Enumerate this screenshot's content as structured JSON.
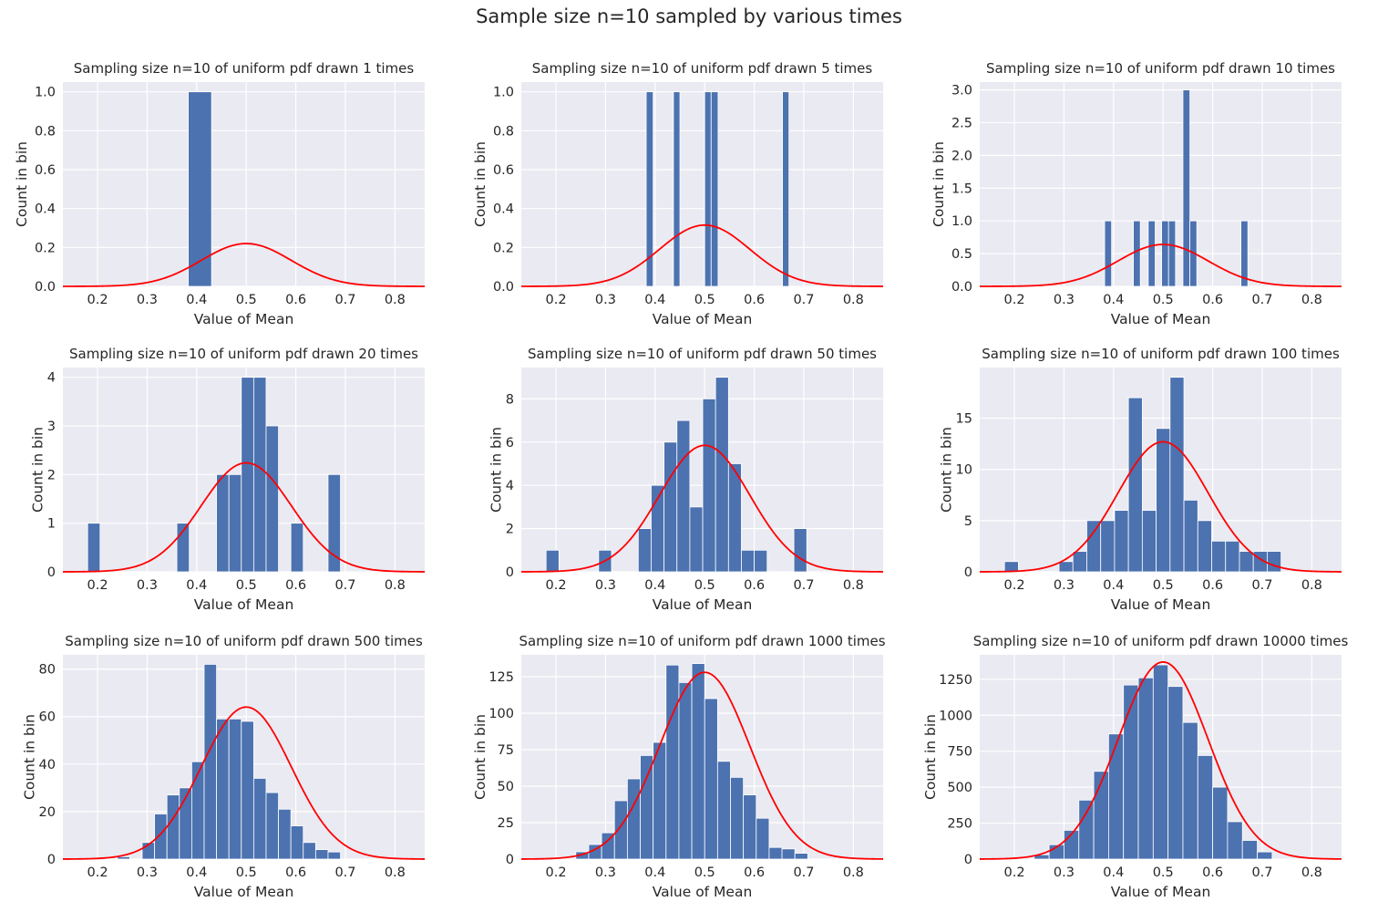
{
  "figure": {
    "suptitle": "Sample size n=10 sampled by various times",
    "colors": {
      "bar": "#4c72b0",
      "curve": "#ff0000",
      "plot_bg": "#eaeaf2",
      "grid": "#ffffff"
    }
  },
  "chart_data": [
    {
      "type": "bar",
      "title": "Sampling size n=10 of uniform pdf drawn 1 times",
      "xlabel": "Value of Mean",
      "ylabel": "Count in bin",
      "xlim": [
        0.13,
        0.86
      ],
      "ylim": [
        0,
        1.05
      ],
      "xticks": [
        0.2,
        0.3,
        0.4,
        0.5,
        0.6,
        0.7,
        0.8
      ],
      "yticks": [
        0.0,
        0.2,
        0.4,
        0.6,
        0.8,
        1.0
      ],
      "ytick_labels": [
        "0.0",
        "0.2",
        "0.4",
        "0.6",
        "0.8",
        "1.0"
      ],
      "bars": [
        {
          "x0": 0.383,
          "x1": 0.43,
          "y": 1
        }
      ],
      "curve": {
        "mean": 0.5,
        "sd": 0.091,
        "peak": 0.22
      },
      "grid": true,
      "legend": "none"
    },
    {
      "type": "bar",
      "title": "Sampling size n=10 of uniform pdf drawn 5 times",
      "xlabel": "Value of Mean",
      "ylabel": "Count in bin",
      "xlim": [
        0.13,
        0.86
      ],
      "ylim": [
        0,
        1.05
      ],
      "xticks": [
        0.2,
        0.3,
        0.4,
        0.5,
        0.6,
        0.7,
        0.8
      ],
      "yticks": [
        0.0,
        0.2,
        0.4,
        0.6,
        0.8,
        1.0
      ],
      "ytick_labels": [
        "0.0",
        "0.2",
        "0.4",
        "0.6",
        "0.8",
        "1.0"
      ],
      "bars": [
        {
          "x0": 0.382,
          "x1": 0.396,
          "y": 1
        },
        {
          "x0": 0.437,
          "x1": 0.45,
          "y": 1
        },
        {
          "x0": 0.5,
          "x1": 0.513,
          "y": 1
        },
        {
          "x0": 0.513,
          "x1": 0.527,
          "y": 1
        },
        {
          "x0": 0.657,
          "x1": 0.67,
          "y": 1
        }
      ],
      "curve": {
        "mean": 0.5,
        "sd": 0.091,
        "peak": 0.315
      },
      "grid": true,
      "legend": "none"
    },
    {
      "type": "bar",
      "title": "Sampling size n=10 of uniform pdf drawn 10 times",
      "xlabel": "Value of Mean",
      "ylabel": "Count in bin",
      "xlim": [
        0.13,
        0.86
      ],
      "ylim": [
        0,
        3.12
      ],
      "xticks": [
        0.2,
        0.3,
        0.4,
        0.5,
        0.6,
        0.7,
        0.8
      ],
      "yticks": [
        0.0,
        0.5,
        1.0,
        1.5,
        2.0,
        2.5,
        3.0
      ],
      "ytick_labels": [
        "0.0",
        "0.5",
        "1.0",
        "1.5",
        "2.0",
        "2.5",
        "3.0"
      ],
      "bars": [
        {
          "x0": 0.382,
          "x1": 0.396,
          "y": 1
        },
        {
          "x0": 0.44,
          "x1": 0.454,
          "y": 1
        },
        {
          "x0": 0.47,
          "x1": 0.484,
          "y": 1
        },
        {
          "x0": 0.497,
          "x1": 0.511,
          "y": 1
        },
        {
          "x0": 0.511,
          "x1": 0.525,
          "y": 1
        },
        {
          "x0": 0.54,
          "x1": 0.554,
          "y": 3
        },
        {
          "x0": 0.554,
          "x1": 0.568,
          "y": 1
        },
        {
          "x0": 0.657,
          "x1": 0.671,
          "y": 1
        }
      ],
      "curve": {
        "mean": 0.5,
        "sd": 0.091,
        "peak": 0.64
      },
      "grid": true,
      "legend": "none"
    },
    {
      "type": "bar",
      "title": "Sampling size n=10 of uniform pdf drawn 20 times",
      "xlabel": "Value of Mean",
      "ylabel": "Count in bin",
      "xlim": [
        0.13,
        0.86
      ],
      "ylim": [
        0,
        4.2
      ],
      "xticks": [
        0.2,
        0.3,
        0.4,
        0.5,
        0.6,
        0.7,
        0.8
      ],
      "yticks": [
        0,
        1,
        2,
        3,
        4
      ],
      "ytick_labels": [
        "0",
        "1",
        "2",
        "3",
        "4"
      ],
      "bars": [
        {
          "x0": 0.18,
          "x1": 0.205,
          "y": 1
        },
        {
          "x0": 0.36,
          "x1": 0.385,
          "y": 1
        },
        {
          "x0": 0.44,
          "x1": 0.465,
          "y": 2
        },
        {
          "x0": 0.465,
          "x1": 0.49,
          "y": 2
        },
        {
          "x0": 0.49,
          "x1": 0.515,
          "y": 4
        },
        {
          "x0": 0.515,
          "x1": 0.54,
          "y": 4
        },
        {
          "x0": 0.54,
          "x1": 0.565,
          "y": 3
        },
        {
          "x0": 0.59,
          "x1": 0.615,
          "y": 1
        },
        {
          "x0": 0.665,
          "x1": 0.69,
          "y": 2
        }
      ],
      "curve": {
        "mean": 0.5,
        "sd": 0.091,
        "peak": 2.24
      },
      "grid": true,
      "legend": "none"
    },
    {
      "type": "bar",
      "title": "Sampling size n=10 of uniform pdf drawn 50 times",
      "xlabel": "Value of Mean",
      "ylabel": "Count in bin",
      "xlim": [
        0.13,
        0.86
      ],
      "ylim": [
        0,
        9.45
      ],
      "xticks": [
        0.2,
        0.3,
        0.4,
        0.5,
        0.6,
        0.7,
        0.8
      ],
      "yticks": [
        0,
        2,
        4,
        6,
        8
      ],
      "ytick_labels": [
        "0",
        "2",
        "4",
        "6",
        "8"
      ],
      "bars": [
        {
          "x0": 0.18,
          "x1": 0.206,
          "y": 1
        },
        {
          "x0": 0.286,
          "x1": 0.312,
          "y": 1
        },
        {
          "x0": 0.366,
          "x1": 0.392,
          "y": 2
        },
        {
          "x0": 0.392,
          "x1": 0.418,
          "y": 4
        },
        {
          "x0": 0.418,
          "x1": 0.444,
          "y": 6
        },
        {
          "x0": 0.444,
          "x1": 0.47,
          "y": 7
        },
        {
          "x0": 0.47,
          "x1": 0.496,
          "y": 3
        },
        {
          "x0": 0.496,
          "x1": 0.522,
          "y": 8
        },
        {
          "x0": 0.522,
          "x1": 0.548,
          "y": 9
        },
        {
          "x0": 0.548,
          "x1": 0.574,
          "y": 5
        },
        {
          "x0": 0.574,
          "x1": 0.6,
          "y": 1
        },
        {
          "x0": 0.6,
          "x1": 0.626,
          "y": 1
        },
        {
          "x0": 0.68,
          "x1": 0.706,
          "y": 2
        }
      ],
      "curve": {
        "mean": 0.5,
        "sd": 0.091,
        "peak": 5.85
      },
      "grid": true,
      "legend": "none"
    },
    {
      "type": "bar",
      "title": "Sampling size n=10 of uniform pdf drawn 100 times",
      "xlabel": "Value of Mean",
      "ylabel": "Count in bin",
      "xlim": [
        0.13,
        0.86
      ],
      "ylim": [
        0,
        19.95
      ],
      "xticks": [
        0.2,
        0.3,
        0.4,
        0.5,
        0.6,
        0.7,
        0.8
      ],
      "yticks": [
        0,
        5,
        10,
        15
      ],
      "ytick_labels": [
        "0",
        "5",
        "10",
        "15"
      ],
      "bars": [
        {
          "x0": 0.18,
          "x1": 0.208,
          "y": 1
        },
        {
          "x0": 0.29,
          "x1": 0.318,
          "y": 1
        },
        {
          "x0": 0.318,
          "x1": 0.346,
          "y": 2
        },
        {
          "x0": 0.346,
          "x1": 0.374,
          "y": 5
        },
        {
          "x0": 0.374,
          "x1": 0.402,
          "y": 5
        },
        {
          "x0": 0.402,
          "x1": 0.43,
          "y": 6
        },
        {
          "x0": 0.43,
          "x1": 0.458,
          "y": 17
        },
        {
          "x0": 0.458,
          "x1": 0.486,
          "y": 6
        },
        {
          "x0": 0.486,
          "x1": 0.514,
          "y": 14
        },
        {
          "x0": 0.514,
          "x1": 0.542,
          "y": 19
        },
        {
          "x0": 0.542,
          "x1": 0.57,
          "y": 7
        },
        {
          "x0": 0.57,
          "x1": 0.598,
          "y": 5
        },
        {
          "x0": 0.598,
          "x1": 0.626,
          "y": 3
        },
        {
          "x0": 0.626,
          "x1": 0.654,
          "y": 3
        },
        {
          "x0": 0.654,
          "x1": 0.682,
          "y": 2
        },
        {
          "x0": 0.682,
          "x1": 0.71,
          "y": 2
        },
        {
          "x0": 0.71,
          "x1": 0.738,
          "y": 2
        }
      ],
      "curve": {
        "mean": 0.5,
        "sd": 0.091,
        "peak": 12.7
      },
      "grid": true,
      "legend": "none"
    },
    {
      "type": "bar",
      "title": "Sampling size n=10 of uniform pdf drawn 500 times",
      "xlabel": "Value of Mean",
      "ylabel": "Count in bin",
      "xlim": [
        0.13,
        0.86
      ],
      "ylim": [
        0,
        86
      ],
      "xticks": [
        0.2,
        0.3,
        0.4,
        0.5,
        0.6,
        0.7,
        0.8
      ],
      "yticks": [
        0,
        20,
        40,
        60,
        80
      ],
      "ytick_labels": [
        "0",
        "20",
        "40",
        "60",
        "80"
      ],
      "bars": [
        {
          "x0": 0.24,
          "x1": 0.265,
          "y": 1
        },
        {
          "x0": 0.29,
          "x1": 0.315,
          "y": 7
        },
        {
          "x0": 0.315,
          "x1": 0.34,
          "y": 19
        },
        {
          "x0": 0.34,
          "x1": 0.365,
          "y": 27
        },
        {
          "x0": 0.365,
          "x1": 0.39,
          "y": 30
        },
        {
          "x0": 0.39,
          "x1": 0.415,
          "y": 41
        },
        {
          "x0": 0.415,
          "x1": 0.44,
          "y": 82
        },
        {
          "x0": 0.44,
          "x1": 0.465,
          "y": 59
        },
        {
          "x0": 0.465,
          "x1": 0.49,
          "y": 59
        },
        {
          "x0": 0.49,
          "x1": 0.515,
          "y": 58
        },
        {
          "x0": 0.515,
          "x1": 0.54,
          "y": 34
        },
        {
          "x0": 0.54,
          "x1": 0.565,
          "y": 28
        },
        {
          "x0": 0.565,
          "x1": 0.59,
          "y": 21
        },
        {
          "x0": 0.59,
          "x1": 0.615,
          "y": 14
        },
        {
          "x0": 0.615,
          "x1": 0.64,
          "y": 7
        },
        {
          "x0": 0.64,
          "x1": 0.665,
          "y": 4
        },
        {
          "x0": 0.665,
          "x1": 0.69,
          "y": 3
        }
      ],
      "curve": {
        "mean": 0.5,
        "sd": 0.091,
        "peak": 64
      },
      "grid": true,
      "legend": "none"
    },
    {
      "type": "bar",
      "title": "Sampling size n=10 of uniform pdf drawn 1000 times",
      "xlabel": "Value of Mean",
      "ylabel": "Count in bin",
      "xlim": [
        0.13,
        0.86
      ],
      "ylim": [
        0,
        140
      ],
      "xticks": [
        0.2,
        0.3,
        0.4,
        0.5,
        0.6,
        0.7,
        0.8
      ],
      "yticks": [
        0,
        25,
        50,
        75,
        100,
        125
      ],
      "ytick_labels": [
        "0",
        "25",
        "50",
        "75",
        "100",
        "125"
      ],
      "bars": [
        {
          "x0": 0.24,
          "x1": 0.266,
          "y": 5
        },
        {
          "x0": 0.266,
          "x1": 0.292,
          "y": 10
        },
        {
          "x0": 0.292,
          "x1": 0.318,
          "y": 18
        },
        {
          "x0": 0.318,
          "x1": 0.344,
          "y": 40
        },
        {
          "x0": 0.344,
          "x1": 0.37,
          "y": 55
        },
        {
          "x0": 0.37,
          "x1": 0.396,
          "y": 71
        },
        {
          "x0": 0.396,
          "x1": 0.422,
          "y": 80
        },
        {
          "x0": 0.422,
          "x1": 0.448,
          "y": 133
        },
        {
          "x0": 0.448,
          "x1": 0.474,
          "y": 121
        },
        {
          "x0": 0.474,
          "x1": 0.5,
          "y": 134
        },
        {
          "x0": 0.5,
          "x1": 0.526,
          "y": 110
        },
        {
          "x0": 0.526,
          "x1": 0.552,
          "y": 67
        },
        {
          "x0": 0.552,
          "x1": 0.578,
          "y": 56
        },
        {
          "x0": 0.578,
          "x1": 0.604,
          "y": 44
        },
        {
          "x0": 0.604,
          "x1": 0.63,
          "y": 28
        },
        {
          "x0": 0.63,
          "x1": 0.656,
          "y": 8
        },
        {
          "x0": 0.656,
          "x1": 0.682,
          "y": 7
        },
        {
          "x0": 0.682,
          "x1": 0.708,
          "y": 4
        }
      ],
      "curve": {
        "mean": 0.5,
        "sd": 0.091,
        "peak": 128
      },
      "grid": true,
      "legend": "none"
    },
    {
      "type": "bar",
      "title": "Sampling size n=10 of uniform pdf drawn 10000 times",
      "xlabel": "Value of Mean",
      "ylabel": "Count in bin",
      "xlim": [
        0.13,
        0.86
      ],
      "ylim": [
        0,
        1420
      ],
      "xticks": [
        0.2,
        0.3,
        0.4,
        0.5,
        0.6,
        0.7,
        0.8
      ],
      "yticks": [
        0,
        250,
        500,
        750,
        1000,
        1250
      ],
      "ytick_labels": [
        "0",
        "250",
        "500",
        "750",
        "1000",
        "1250"
      ],
      "bars": [
        {
          "x0": 0.24,
          "x1": 0.27,
          "y": 30
        },
        {
          "x0": 0.27,
          "x1": 0.3,
          "y": 100
        },
        {
          "x0": 0.3,
          "x1": 0.33,
          "y": 200
        },
        {
          "x0": 0.33,
          "x1": 0.36,
          "y": 410
        },
        {
          "x0": 0.36,
          "x1": 0.39,
          "y": 610
        },
        {
          "x0": 0.39,
          "x1": 0.42,
          "y": 870
        },
        {
          "x0": 0.42,
          "x1": 0.45,
          "y": 1210
        },
        {
          "x0": 0.45,
          "x1": 0.48,
          "y": 1260
        },
        {
          "x0": 0.48,
          "x1": 0.51,
          "y": 1350
        },
        {
          "x0": 0.51,
          "x1": 0.54,
          "y": 1200
        },
        {
          "x0": 0.54,
          "x1": 0.57,
          "y": 950
        },
        {
          "x0": 0.57,
          "x1": 0.6,
          "y": 720
        },
        {
          "x0": 0.6,
          "x1": 0.63,
          "y": 500
        },
        {
          "x0": 0.63,
          "x1": 0.66,
          "y": 260
        },
        {
          "x0": 0.66,
          "x1": 0.69,
          "y": 130
        },
        {
          "x0": 0.69,
          "x1": 0.72,
          "y": 50
        }
      ],
      "curve": {
        "mean": 0.5,
        "sd": 0.091,
        "peak": 1370
      },
      "grid": true,
      "legend": "none"
    }
  ]
}
